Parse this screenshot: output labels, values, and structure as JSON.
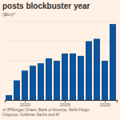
{
  "chart_data": {
    "type": "bar",
    "title": "posts blockbuster year",
    "subtitle": "($bn)*",
    "note": [
      "of JPMorgan Chase, Bank of America, Wells Fargo,",
      "Citigroup, Goldman Sachs and M"
    ],
    "x": [
      2008,
      2009,
      2010,
      2011,
      2012,
      2013,
      2014,
      2015,
      2016,
      2017,
      2018,
      2019,
      2020,
      2021
    ],
    "values": [
      10,
      40,
      60,
      70,
      75,
      85,
      80,
      95,
      95,
      90,
      120,
      125,
      80,
      155
    ],
    "color": "#0f5499",
    "xlim": [
      2007.5,
      2021.5
    ],
    "xticks": [
      2010,
      2015,
      2020
    ],
    "ylim": [
      0,
      160
    ],
    "yticks": [
      0,
      40,
      80,
      120,
      160
    ],
    "grid": true,
    "tick_labels": "x"
  }
}
